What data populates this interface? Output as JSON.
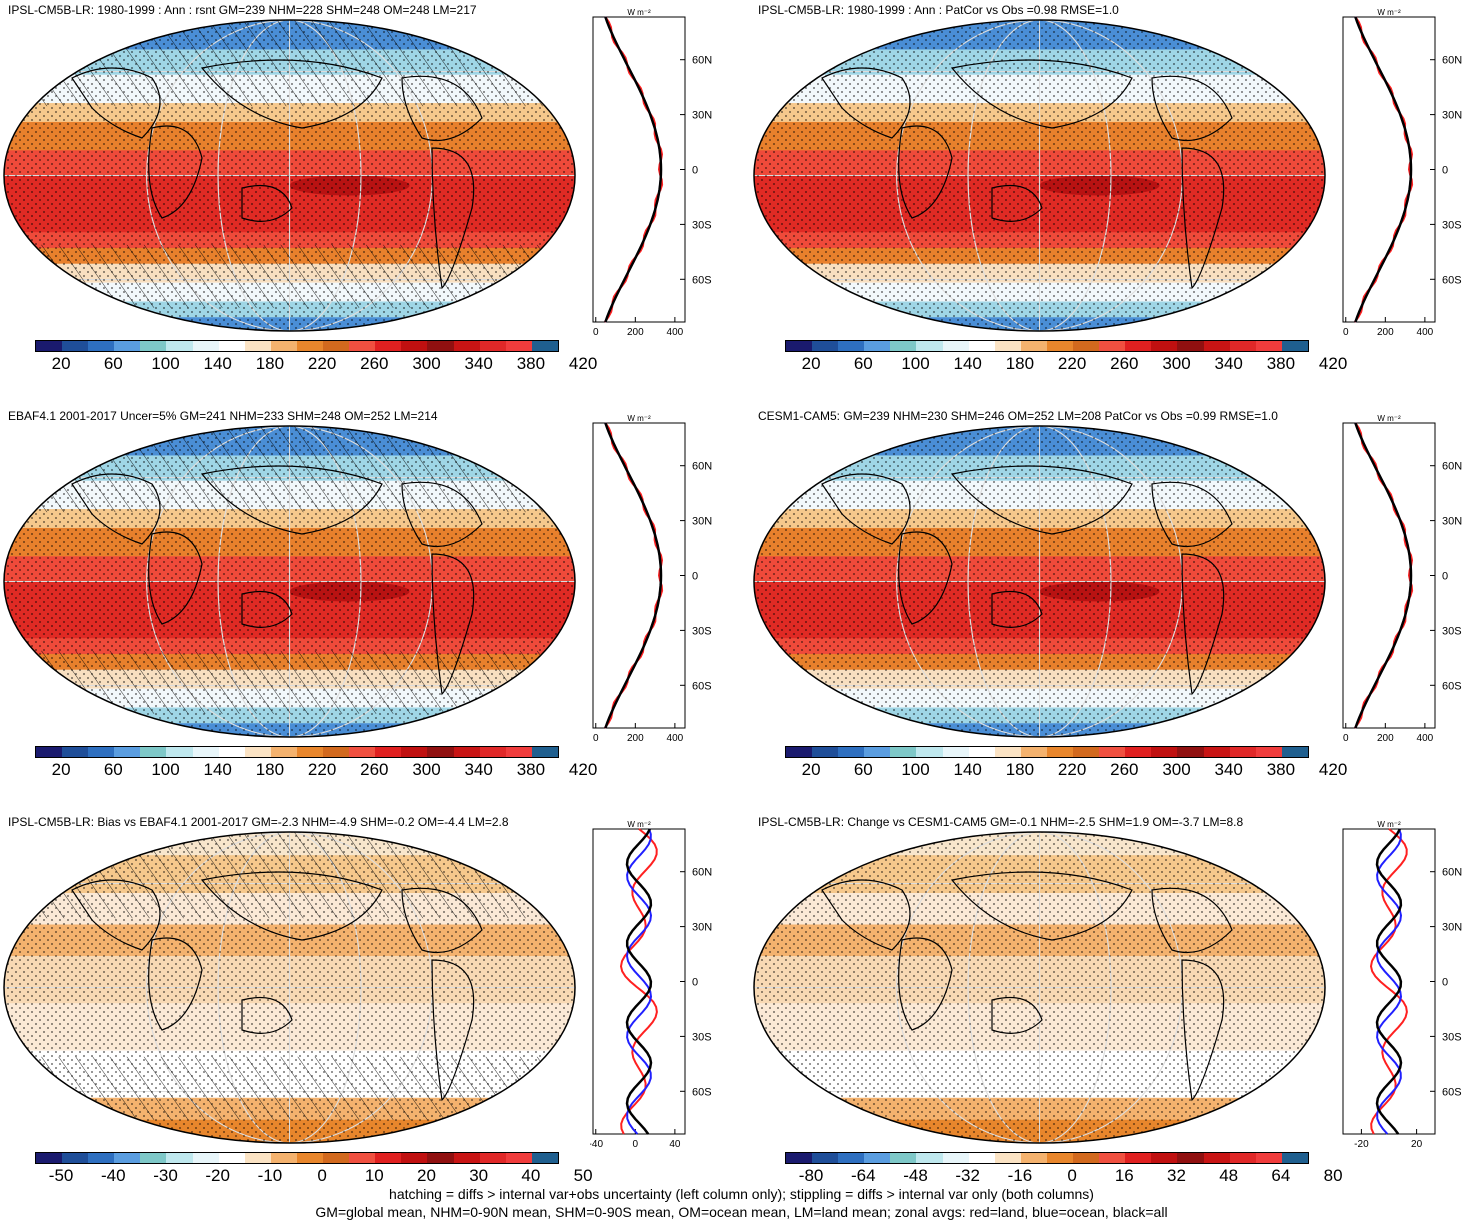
{
  "panels": [
    {
      "id": "p1",
      "title": "IPSL-CM5B-LR: 1980-1999 : Ann : rsnt GM=239 NHM=228 SHM=248 OM=248 LM=217",
      "colorbar_type": "abs",
      "zonal_xticks": [
        "0",
        "200",
        "400"
      ],
      "zonal_unit": "W m⁻²",
      "hatch": true
    },
    {
      "id": "p2",
      "title": "IPSL-CM5B-LR: 1980-1999 : Ann : PatCor vs Obs =0.98 RMSE=1.0",
      "colorbar_type": "abs",
      "zonal_xticks": [
        "0",
        "200",
        "400"
      ],
      "zonal_unit": "W m⁻²",
      "hatch": false
    },
    {
      "id": "p3",
      "title": "EBAF4.1 2001-2017 Uncer=5% GM=241 NHM=233 SHM=248 OM=252 LM=214",
      "colorbar_type": "abs",
      "zonal_xticks": [
        "0",
        "200",
        "400"
      ],
      "zonal_unit": "W m⁻²",
      "hatch": true
    },
    {
      "id": "p4",
      "title": "CESM1-CAM5: GM=239 NHM=230 SHM=246 OM=252 LM=208 PatCor vs Obs =0.99 RMSE=1.0",
      "colorbar_type": "abs",
      "zonal_xticks": [
        "0",
        "200",
        "400"
      ],
      "zonal_unit": "W m⁻²",
      "hatch": false
    },
    {
      "id": "p5",
      "title": "IPSL-CM5B-LR: Bias vs EBAF4.1 2001-2017 GM=-2.3 NHM=-4.9 SHM=-0.2 OM=-4.4 LM=2.8",
      "colorbar_type": "diff50",
      "zonal_xticks": [
        "-40",
        "0",
        "40"
      ],
      "zonal_unit": "W m⁻²",
      "hatch": true
    },
    {
      "id": "p6",
      "title": "IPSL-CM5B-LR: Change vs CESM1-CAM5 GM=-0.1 NHM=-2.5 SHM=1.9 OM=-3.7 LM=8.8",
      "colorbar_type": "diff80",
      "zonal_xticks": [
        "-20",
        "20"
      ],
      "zonal_unit": "W m⁻²",
      "hatch": false
    }
  ],
  "lat_ticks": [
    "60N",
    "30N",
    "0",
    "30S",
    "60S"
  ],
  "colorbars": {
    "abs": {
      "labels": [
        "20",
        "60",
        "100",
        "140",
        "180",
        "220",
        "260",
        "300",
        "340",
        "380",
        "420"
      ],
      "colors": [
        "#1a1a6e",
        "#1f4e99",
        "#2e6fc0",
        "#5a9de0",
        "#7ec8c8",
        "#bfe8ee",
        "#e8f6fa",
        "#ffffff",
        "#fbe3c4",
        "#f4b26e",
        "#e8862c",
        "#d2691e",
        "#f05040",
        "#e02020",
        "#c01010",
        "#901010",
        "#c81414",
        "#e02828",
        "#f03c3c",
        "#1f5f8f"
      ]
    },
    "diff50": {
      "labels": [
        "-50",
        "-40",
        "-30",
        "-20",
        "-10",
        "0",
        "10",
        "20",
        "30",
        "40",
        "50"
      ],
      "colors": [
        "#1a1a6e",
        "#1f4e99",
        "#2e6fc0",
        "#5a9de0",
        "#7ec8c8",
        "#bfe8ee",
        "#e8f6fa",
        "#ffffff",
        "#fbe3c4",
        "#f4b26e",
        "#e8862c",
        "#d2691e",
        "#f05040",
        "#e02020",
        "#c01010",
        "#901010",
        "#c81414",
        "#e02828",
        "#f03c3c",
        "#1f5f8f"
      ]
    },
    "diff80": {
      "labels": [
        "-80",
        "-64",
        "-48",
        "-32",
        "-16",
        "0",
        "16",
        "32",
        "48",
        "64",
        "80"
      ],
      "colors": [
        "#1a1a6e",
        "#1f4e99",
        "#2e6fc0",
        "#5a9de0",
        "#7ec8c8",
        "#bfe8ee",
        "#e8f6fa",
        "#ffffff",
        "#fbe3c4",
        "#f4b26e",
        "#e8862c",
        "#d2691e",
        "#f05040",
        "#e02020",
        "#c01010",
        "#901010",
        "#c81414",
        "#e02828",
        "#f03c3c",
        "#1f5f8f"
      ]
    }
  },
  "footer": {
    "line1": "hatching = diffs > internal var+obs uncertainty (left column only); stippling = diffs > internal var only (both columns)",
    "line2": "GM=global mean, NHM=0-90N mean, SHM=0-90S mean, OM=ocean mean, LM=land mean; zonal avgs: red=land, blue=ocean, black=all"
  }
}
